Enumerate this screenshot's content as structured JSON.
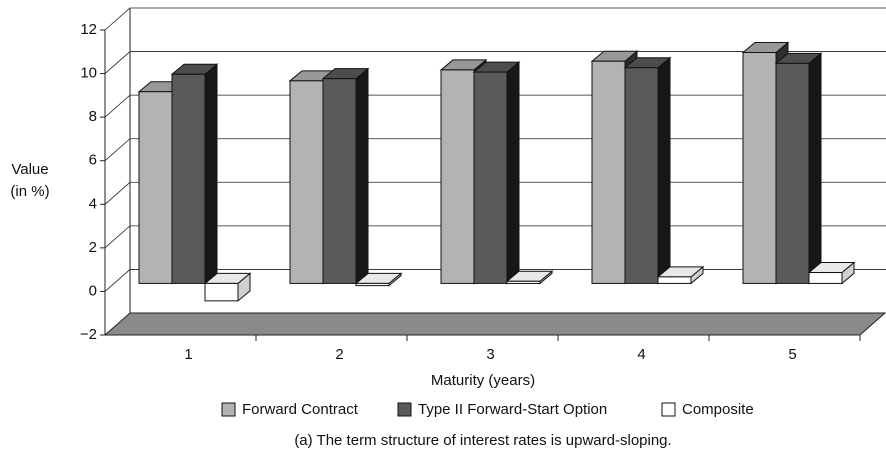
{
  "chart_data": {
    "type": "bar3d",
    "ylabel": [
      "Value",
      "(in %)"
    ],
    "xlabel": "Maturity (years)",
    "caption": "(a) The term structure of interest rates is upward-sloping.",
    "categories": [
      "1",
      "2",
      "3",
      "4",
      "5"
    ],
    "series": [
      {
        "name": "Forward Contract",
        "color": "#b3b3b3",
        "values": [
          8.8,
          9.3,
          9.8,
          10.2,
          10.6
        ]
      },
      {
        "name": "Type II Forward-Start Option",
        "color": "#5a5a5a",
        "values": [
          9.6,
          9.4,
          9.7,
          9.9,
          10.1
        ]
      },
      {
        "name": "Composite",
        "color": "#ffffff",
        "values": [
          -0.8,
          -0.1,
          0.1,
          0.3,
          0.5
        ]
      }
    ],
    "ylim": [
      -2,
      12
    ],
    "yticks": [
      {
        "value": -2,
        "label": "−2"
      },
      0,
      2,
      4,
      6,
      8,
      10,
      12
    ],
    "grid": true
  }
}
